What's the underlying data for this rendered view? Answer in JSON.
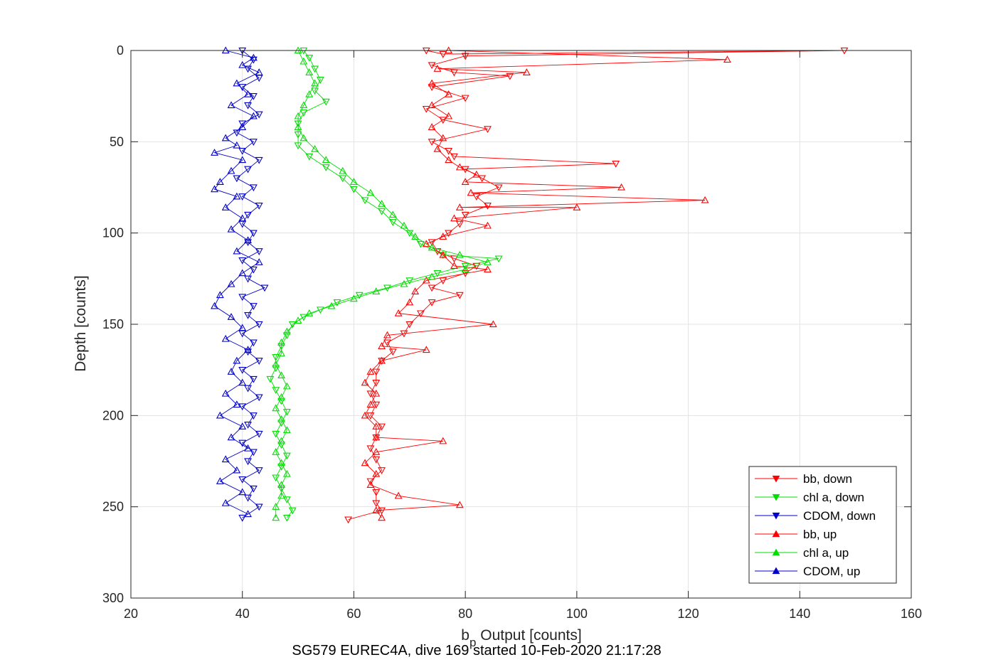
{
  "chart_data": {
    "type": "line",
    "xlabel_main": "b",
    "xlabel_sub": "p",
    "xlabel_rest": " Output [counts]",
    "ylabel": "Depth [counts]",
    "caption": "SG579 EUREC4A, dive 169 started 10-Feb-2020 21:17:28",
    "xlim": [
      20,
      160
    ],
    "ylim": [
      0,
      300
    ],
    "y_reversed": true,
    "grid": true,
    "legend_placement": "bottom-right",
    "xticks": [
      20,
      40,
      60,
      80,
      100,
      120,
      140,
      160
    ],
    "yticks": [
      0,
      50,
      100,
      150,
      200,
      250,
      300
    ],
    "series": [
      {
        "name": "bb, down",
        "color": "#ff0000",
        "marker": "triangle-down",
        "points": [
          [
            73,
            0
          ],
          [
            76,
            2
          ],
          [
            148,
            0
          ],
          [
            80,
            3
          ],
          [
            74,
            8
          ],
          [
            78,
            12
          ],
          [
            88,
            14
          ],
          [
            74,
            20
          ],
          [
            80,
            26
          ],
          [
            73,
            32
          ],
          [
            76,
            38
          ],
          [
            84,
            43
          ],
          [
            74,
            50
          ],
          [
            77,
            55
          ],
          [
            78,
            58
          ],
          [
            107,
            62
          ],
          [
            80,
            65
          ],
          [
            83,
            70
          ],
          [
            86,
            75
          ],
          [
            82,
            80
          ],
          [
            84,
            85
          ],
          [
            80,
            90
          ],
          [
            79,
            95
          ],
          [
            77,
            100
          ],
          [
            74,
            105
          ],
          [
            75,
            110
          ],
          [
            78,
            114
          ],
          [
            82,
            118
          ],
          [
            80,
            122
          ],
          [
            76,
            126
          ],
          [
            74,
            130
          ],
          [
            79,
            134
          ],
          [
            74,
            138
          ],
          [
            72,
            144
          ],
          [
            70,
            150
          ],
          [
            69,
            155
          ],
          [
            66,
            160
          ],
          [
            67,
            165
          ],
          [
            65,
            170
          ],
          [
            64,
            176
          ],
          [
            64,
            182
          ],
          [
            63,
            188
          ],
          [
            64,
            194
          ],
          [
            63,
            200
          ],
          [
            65,
            206
          ],
          [
            64,
            212
          ],
          [
            63,
            218
          ],
          [
            64,
            224
          ],
          [
            65,
            230
          ],
          [
            63,
            236
          ],
          [
            64,
            242
          ],
          [
            64,
            248
          ],
          [
            65,
            252
          ],
          [
            59,
            257
          ]
        ]
      },
      {
        "name": "chl a, down",
        "color": "#00dd00",
        "marker": "triangle-down",
        "points": [
          [
            51,
            0
          ],
          [
            52,
            4
          ],
          [
            53,
            10
          ],
          [
            54,
            16
          ],
          [
            53,
            22
          ],
          [
            55,
            28
          ],
          [
            51,
            34
          ],
          [
            50,
            40
          ],
          [
            50,
            46
          ],
          [
            50,
            52
          ],
          [
            52,
            58
          ],
          [
            55,
            64
          ],
          [
            58,
            70
          ],
          [
            60,
            76
          ],
          [
            62,
            82
          ],
          [
            65,
            88
          ],
          [
            67,
            94
          ],
          [
            70,
            100
          ],
          [
            72,
            106
          ],
          [
            76,
            112
          ],
          [
            86,
            114
          ],
          [
            80,
            118
          ],
          [
            75,
            122
          ],
          [
            70,
            126
          ],
          [
            66,
            130
          ],
          [
            61,
            134
          ],
          [
            57,
            138
          ],
          [
            54,
            142
          ],
          [
            51,
            146
          ],
          [
            49,
            150
          ],
          [
            48,
            156
          ],
          [
            47,
            162
          ],
          [
            46,
            168
          ],
          [
            46,
            174
          ],
          [
            45,
            180
          ],
          [
            46,
            186
          ],
          [
            47,
            192
          ],
          [
            48,
            198
          ],
          [
            47,
            204
          ],
          [
            46,
            210
          ],
          [
            47,
            216
          ],
          [
            48,
            222
          ],
          [
            47,
            228
          ],
          [
            46,
            234
          ],
          [
            47,
            240
          ],
          [
            48,
            246
          ],
          [
            49,
            252
          ],
          [
            48,
            256
          ]
        ]
      },
      {
        "name": "CDOM, down",
        "color": "#0000cc",
        "marker": "triangle-down",
        "points": [
          [
            40,
            0
          ],
          [
            42,
            5
          ],
          [
            41,
            10
          ],
          [
            43,
            15
          ],
          [
            40,
            20
          ],
          [
            42,
            25
          ],
          [
            41,
            30
          ],
          [
            43,
            35
          ],
          [
            40,
            40
          ],
          [
            39,
            45
          ],
          [
            42,
            50
          ],
          [
            40,
            55
          ],
          [
            43,
            60
          ],
          [
            41,
            65
          ],
          [
            39,
            70
          ],
          [
            42,
            75
          ],
          [
            40,
            80
          ],
          [
            43,
            85
          ],
          [
            41,
            90
          ],
          [
            40,
            95
          ],
          [
            42,
            100
          ],
          [
            41,
            105
          ],
          [
            43,
            110
          ],
          [
            40,
            115
          ],
          [
            42,
            120
          ],
          [
            41,
            125
          ],
          [
            44,
            130
          ],
          [
            40,
            135
          ],
          [
            42,
            140
          ],
          [
            41,
            145
          ],
          [
            43,
            150
          ],
          [
            40,
            155
          ],
          [
            42,
            160
          ],
          [
            41,
            165
          ],
          [
            43,
            170
          ],
          [
            40,
            175
          ],
          [
            42,
            180
          ],
          [
            41,
            185
          ],
          [
            43,
            190
          ],
          [
            40,
            195
          ],
          [
            42,
            200
          ],
          [
            41,
            205
          ],
          [
            43,
            210
          ],
          [
            40,
            215
          ],
          [
            42,
            220
          ],
          [
            41,
            225
          ],
          [
            43,
            230
          ],
          [
            40,
            235
          ],
          [
            42,
            240
          ],
          [
            41,
            245
          ],
          [
            43,
            250
          ],
          [
            40,
            256
          ]
        ]
      },
      {
        "name": "bb, up",
        "color": "#ff0000",
        "marker": "triangle-up",
        "points": [
          [
            77,
            0
          ],
          [
            127,
            5
          ],
          [
            75,
            10
          ],
          [
            91,
            12
          ],
          [
            74,
            18
          ],
          [
            77,
            24
          ],
          [
            74,
            30
          ],
          [
            77,
            36
          ],
          [
            74,
            42
          ],
          [
            76,
            48
          ],
          [
            75,
            54
          ],
          [
            77,
            60
          ],
          [
            79,
            64
          ],
          [
            82,
            68
          ],
          [
            80,
            72
          ],
          [
            108,
            75
          ],
          [
            81,
            78
          ],
          [
            123,
            82
          ],
          [
            79,
            86
          ],
          [
            100,
            86
          ],
          [
            78,
            92
          ],
          [
            84,
            96
          ],
          [
            76,
            102
          ],
          [
            73,
            106
          ],
          [
            76,
            112
          ],
          [
            78,
            118
          ],
          [
            84,
            120
          ],
          [
            73,
            126
          ],
          [
            71,
            132
          ],
          [
            70,
            138
          ],
          [
            68,
            144
          ],
          [
            85,
            150
          ],
          [
            66,
            156
          ],
          [
            65,
            162
          ],
          [
            73,
            164
          ],
          [
            65,
            170
          ],
          [
            63,
            176
          ],
          [
            62,
            182
          ],
          [
            64,
            188
          ],
          [
            63,
            194
          ],
          [
            62,
            200
          ],
          [
            64,
            206
          ],
          [
            64,
            212
          ],
          [
            76,
            214
          ],
          [
            64,
            220
          ],
          [
            62,
            226
          ],
          [
            64,
            232
          ],
          [
            63,
            238
          ],
          [
            68,
            244
          ],
          [
            79,
            249
          ],
          [
            64,
            252
          ],
          [
            65,
            256
          ]
        ]
      },
      {
        "name": "chl a, up",
        "color": "#00dd00",
        "marker": "triangle-up",
        "points": [
          [
            50,
            0
          ],
          [
            51,
            6
          ],
          [
            52,
            12
          ],
          [
            53,
            18
          ],
          [
            52,
            24
          ],
          [
            51,
            30
          ],
          [
            50,
            36
          ],
          [
            50,
            42
          ],
          [
            51,
            48
          ],
          [
            53,
            54
          ],
          [
            55,
            60
          ],
          [
            58,
            66
          ],
          [
            60,
            72
          ],
          [
            63,
            78
          ],
          [
            65,
            84
          ],
          [
            67,
            90
          ],
          [
            69,
            96
          ],
          [
            71,
            102
          ],
          [
            74,
            108
          ],
          [
            79,
            112
          ],
          [
            84,
            116
          ],
          [
            80,
            120
          ],
          [
            74,
            124
          ],
          [
            69,
            128
          ],
          [
            64,
            132
          ],
          [
            60,
            136
          ],
          [
            56,
            140
          ],
          [
            52,
            144
          ],
          [
            50,
            148
          ],
          [
            48,
            154
          ],
          [
            47,
            160
          ],
          [
            47,
            166
          ],
          [
            46,
            172
          ],
          [
            47,
            178
          ],
          [
            48,
            184
          ],
          [
            47,
            190
          ],
          [
            46,
            196
          ],
          [
            47,
            202
          ],
          [
            48,
            208
          ],
          [
            47,
            214
          ],
          [
            46,
            220
          ],
          [
            47,
            226
          ],
          [
            48,
            232
          ],
          [
            47,
            238
          ],
          [
            47,
            244
          ],
          [
            46,
            250
          ],
          [
            46,
            256
          ]
        ]
      },
      {
        "name": "CDOM, up",
        "color": "#0000cc",
        "marker": "triangle-up",
        "points": [
          [
            37,
            0
          ],
          [
            42,
            4
          ],
          [
            40,
            8
          ],
          [
            43,
            12
          ],
          [
            39,
            18
          ],
          [
            41,
            24
          ],
          [
            38,
            30
          ],
          [
            42,
            36
          ],
          [
            40,
            42
          ],
          [
            37,
            48
          ],
          [
            39,
            52
          ],
          [
            35,
            56
          ],
          [
            40,
            60
          ],
          [
            38,
            66
          ],
          [
            36,
            72
          ],
          [
            35,
            76
          ],
          [
            39,
            80
          ],
          [
            37,
            86
          ],
          [
            40,
            92
          ],
          [
            38,
            98
          ],
          [
            41,
            104
          ],
          [
            39,
            110
          ],
          [
            43,
            116
          ],
          [
            40,
            122
          ],
          [
            38,
            128
          ],
          [
            36,
            134
          ],
          [
            35,
            140
          ],
          [
            38,
            146
          ],
          [
            40,
            152
          ],
          [
            37,
            158
          ],
          [
            41,
            164
          ],
          [
            39,
            170
          ],
          [
            38,
            176
          ],
          [
            40,
            182
          ],
          [
            37,
            188
          ],
          [
            39,
            194
          ],
          [
            36,
            200
          ],
          [
            40,
            206
          ],
          [
            38,
            212
          ],
          [
            41,
            218
          ],
          [
            37,
            224
          ],
          [
            39,
            230
          ],
          [
            36,
            236
          ],
          [
            40,
            242
          ],
          [
            37,
            248
          ],
          [
            41,
            254
          ]
        ]
      }
    ]
  }
}
